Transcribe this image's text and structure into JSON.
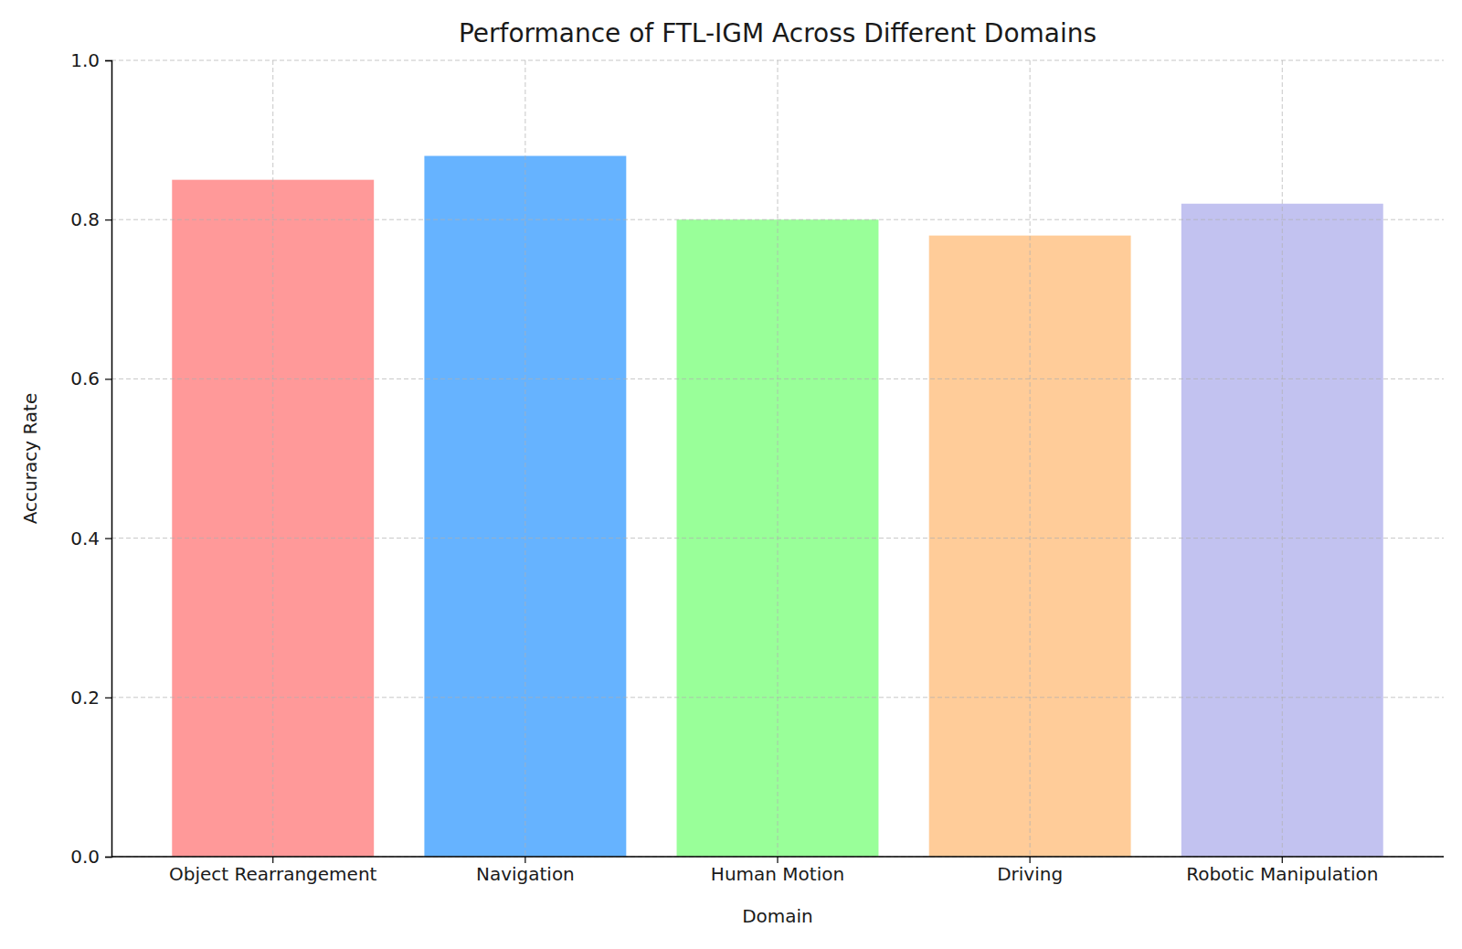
{
  "chart_data": {
    "type": "bar",
    "title": "Performance of FTL-IGM Across Different Domains",
    "x_label": "Domain",
    "y_label": "Accuracy Rate",
    "categories": [
      "Object Rearrangement",
      "Navigation",
      "Human Motion",
      "Driving",
      "Robotic Manipulation"
    ],
    "values": [
      0.85,
      0.88,
      0.8,
      0.78,
      0.82
    ],
    "colors": [
      "#ff9999",
      "#66b3ff",
      "#99ff99",
      "#ffcc99",
      "#c2c2f0"
    ],
    "ylim": [
      0,
      1
    ],
    "yticks": [
      {
        "value": 0,
        "label": "0.0"
      },
      0.2,
      0.4,
      0.6,
      0.8,
      {
        "value": 1,
        "label": "1.0"
      }
    ],
    "grid": true
  }
}
